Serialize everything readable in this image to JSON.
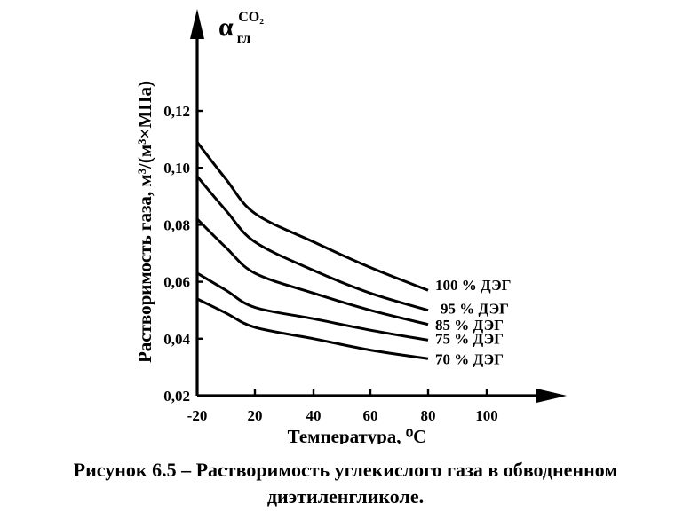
{
  "chart_data": {
    "type": "line",
    "xlabel": "Температура, ⁰С",
    "ylabel": "Растворимость газа, м³/(м³×МПа)",
    "y_symbol": "α",
    "y_symbol_sup": "CO₂",
    "y_symbol_sub": "гл",
    "xlim": [
      -20,
      120
    ],
    "ylim": [
      0.02,
      0.14
    ],
    "x_ticks": [
      "-20",
      "20",
      "40",
      "60",
      "80",
      "100"
    ],
    "x_tick_values": [
      -20,
      20,
      40,
      60,
      80,
      100
    ],
    "y_ticks": [
      "0,02",
      "0,04",
      "0,06",
      "0,08",
      "0,10",
      "0,12"
    ],
    "y_tick_values": [
      0.02,
      0.04,
      0.06,
      0.08,
      0.1,
      0.12
    ],
    "grid": false,
    "x": [
      -20,
      0,
      20,
      40,
      60,
      80
    ],
    "series": [
      {
        "name": "100 % ДЭГ",
        "values": [
          0.109,
          0.096,
          0.084,
          0.074,
          0.065,
          0.057
        ]
      },
      {
        "name": "95 % ДЭГ",
        "values": [
          0.097,
          0.085,
          0.074,
          0.064,
          0.056,
          0.05
        ]
      },
      {
        "name": "85 % ДЭГ",
        "values": [
          0.082,
          0.072,
          0.063,
          0.056,
          0.05,
          0.045
        ]
      },
      {
        "name": "75 % ДЭГ",
        "values": [
          0.063,
          0.057,
          0.051,
          0.047,
          0.043,
          0.0395
        ]
      },
      {
        "name": "70 % ДЭГ",
        "values": [
          0.054,
          0.049,
          0.044,
          0.04,
          0.036,
          0.033
        ]
      }
    ]
  },
  "caption": {
    "line1": "Рисунок 6.5 – Растворимость углекислого газа в обводненном",
    "line2": "диэтиленгликоле."
  }
}
